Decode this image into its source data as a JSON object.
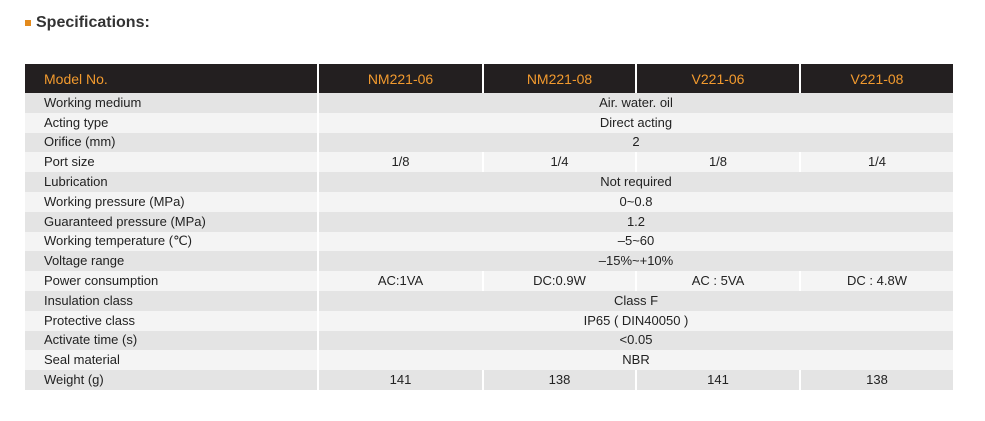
{
  "heading": "Specifications:",
  "table": {
    "header": [
      "Model No.",
      "NM221-06",
      "NM221-08",
      "V221-06",
      "V221-08"
    ],
    "rows": [
      {
        "label": "Working medium",
        "cells": [
          "Air. water. oil"
        ]
      },
      {
        "label": "Acting type",
        "cells": [
          "Direct acting"
        ]
      },
      {
        "label": "Orifice (mm)",
        "cells": [
          "2"
        ]
      },
      {
        "label": "Port size",
        "cells": [
          "1/8",
          "1/4",
          "1/8",
          "1/4"
        ]
      },
      {
        "label": "Lubrication",
        "cells": [
          "Not required"
        ]
      },
      {
        "label": "Working pressure (MPa)",
        "cells": [
          "0~0.8"
        ]
      },
      {
        "label": "Guaranteed pressure (MPa)",
        "cells": [
          "1.2"
        ]
      },
      {
        "label": "Working temperature (℃)",
        "cells": [
          "–5~60"
        ]
      },
      {
        "label": "Voltage range",
        "cells": [
          "–15%~+10%"
        ]
      },
      {
        "label": "Power consumption",
        "cells": [
          "AC:1VA",
          "DC:0.9W",
          "AC : 5VA",
          "DC : 4.8W"
        ]
      },
      {
        "label": "Insulation class",
        "cells": [
          "Class F"
        ]
      },
      {
        "label": "Protective class",
        "cells": [
          "IP65 ( DIN40050 )"
        ]
      },
      {
        "label": "Activate time (s)",
        "cells": [
          "<0.05"
        ]
      },
      {
        "label": "Seal material",
        "cells": [
          "NBR"
        ]
      },
      {
        "label": "Weight (g)",
        "cells": [
          "141",
          "138",
          "141",
          "138"
        ]
      }
    ]
  }
}
